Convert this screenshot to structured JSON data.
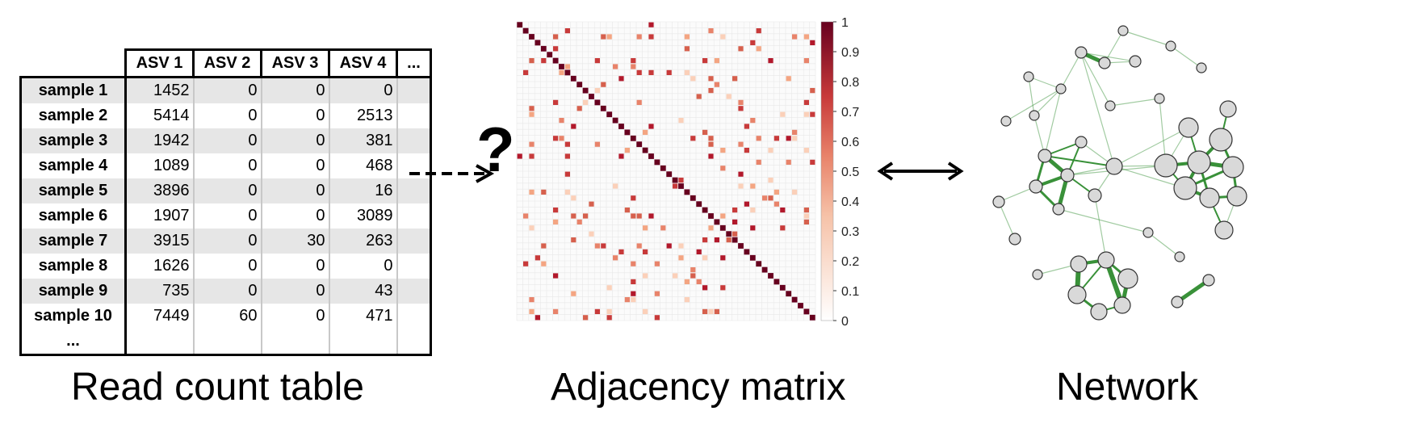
{
  "table": {
    "columns": [
      "ASV 1",
      "ASV 2",
      "ASV 3",
      "ASV 4",
      "..."
    ],
    "rows": [
      {
        "label": "sample 1",
        "values": [
          "1452",
          "0",
          "0",
          "0"
        ]
      },
      {
        "label": "sample 2",
        "values": [
          "5414",
          "0",
          "0",
          "2513"
        ]
      },
      {
        "label": "sample 3",
        "values": [
          "1942",
          "0",
          "0",
          "381"
        ]
      },
      {
        "label": "sample 4",
        "values": [
          "1089",
          "0",
          "0",
          "468"
        ]
      },
      {
        "label": "sample 5",
        "values": [
          "3896",
          "0",
          "0",
          "16"
        ]
      },
      {
        "label": "sample 6",
        "values": [
          "1907",
          "0",
          "0",
          "3089"
        ]
      },
      {
        "label": "sample 7",
        "values": [
          "3915",
          "0",
          "30",
          "263"
        ]
      },
      {
        "label": "sample 8",
        "values": [
          "1626",
          "0",
          "0",
          "0"
        ]
      },
      {
        "label": "sample 9",
        "values": [
          "735",
          "0",
          "0",
          "43"
        ]
      },
      {
        "label": "sample 10",
        "values": [
          "7449",
          "60",
          "0",
          "471"
        ]
      }
    ],
    "more_rows": "..."
  },
  "captions": {
    "table": "Read count table",
    "matrix": "Adjacency matrix",
    "network": "Network"
  },
  "question_mark": "?",
  "colorbar": {
    "ticks": [
      "1",
      "0.9",
      "0.8",
      "0.7",
      "0.6",
      "0.5",
      "0.4",
      "0.3",
      "0.2",
      "0.1",
      "0"
    ],
    "color_low": "#ffffff",
    "color_mid": "#f0a488",
    "color_high": "#67001f"
  },
  "colors": {
    "matrix_cell": "#d95a45",
    "matrix_diag": "#67001f",
    "node_fill": "#d9d9d9",
    "edge": "#2e8b2e"
  }
}
